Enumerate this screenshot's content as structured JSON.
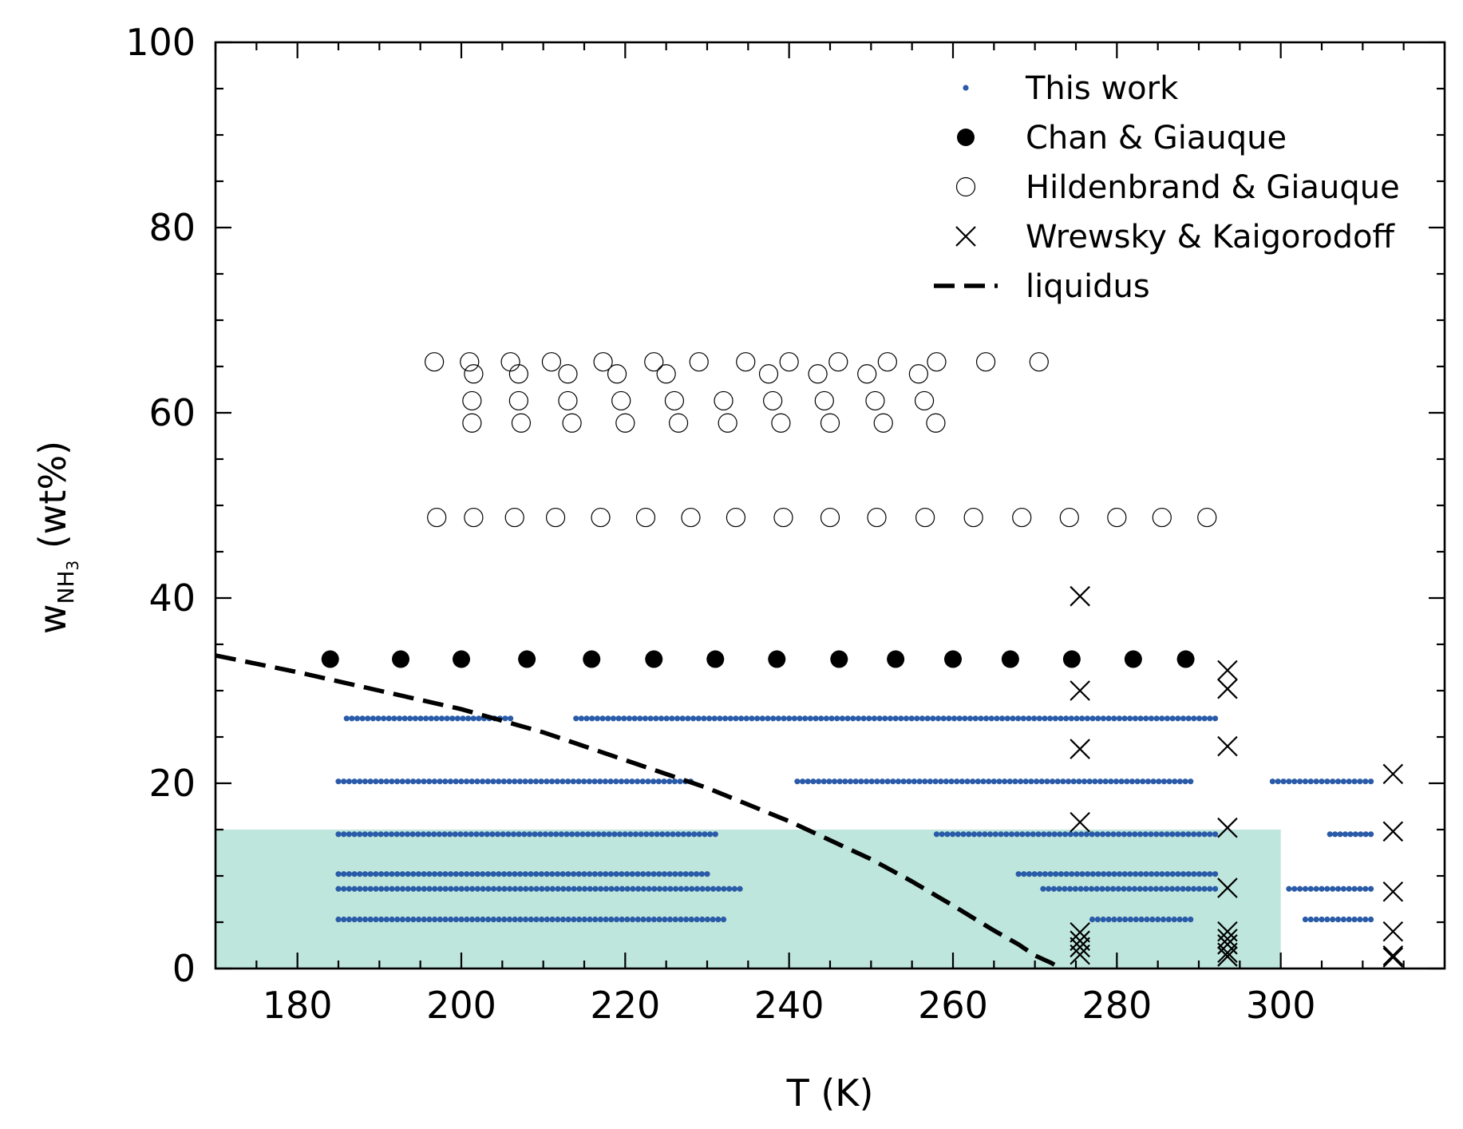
{
  "chart_data": {
    "type": "scatter",
    "xlabel": "T (K)",
    "ylabel": {
      "main": "w",
      "sub": "NH",
      "subsub": "3",
      "unit": " (wt%)"
    },
    "xlim": [
      170,
      320
    ],
    "ylim": [
      0,
      100
    ],
    "xticks": [
      180,
      200,
      220,
      240,
      260,
      280,
      300
    ],
    "yticks": [
      0,
      20,
      40,
      60,
      80,
      100
    ],
    "x_minor_step": 5,
    "y_minor_step": 5,
    "grid": false,
    "legend_position": "top-right",
    "shaded_region": {
      "x": [
        170,
        300
      ],
      "y": [
        0,
        15
      ],
      "color": "#bfe6dc"
    },
    "series": [
      {
        "name": "This work",
        "marker": "small-dot",
        "color": "#2a5ba8",
        "segments": [
          {
            "y": 27.0,
            "x": [
              186,
              206
            ]
          },
          {
            "y": 27.0,
            "x": [
              214,
              292
            ]
          },
          {
            "y": 20.2,
            "x": [
              185,
              228
            ]
          },
          {
            "y": 20.2,
            "x": [
              241,
              289
            ]
          },
          {
            "y": 20.2,
            "x": [
              299,
              311
            ]
          },
          {
            "y": 14.5,
            "x": [
              185,
              231
            ]
          },
          {
            "y": 14.5,
            "x": [
              258,
              292
            ]
          },
          {
            "y": 14.5,
            "x": [
              306,
              311
            ]
          },
          {
            "y": 10.2,
            "x": [
              185,
              230
            ]
          },
          {
            "y": 10.2,
            "x": [
              268,
              292
            ]
          },
          {
            "y": 8.6,
            "x": [
              185,
              234
            ]
          },
          {
            "y": 8.6,
            "x": [
              271,
              292
            ]
          },
          {
            "y": 8.6,
            "x": [
              301,
              311
            ]
          },
          {
            "y": 5.3,
            "x": [
              185,
              232
            ]
          },
          {
            "y": 5.3,
            "x": [
              277,
              289
            ]
          },
          {
            "y": 5.3,
            "x": [
              303,
              311
            ]
          }
        ],
        "spacing": 0.65
      },
      {
        "name": "Chan & Giauque",
        "marker": "filled-circle",
        "color": "#000000",
        "x": [
          184.0,
          192.6,
          200.0,
          208.0,
          215.9,
          223.5,
          231.0,
          238.5,
          246.1,
          253.0,
          260.0,
          267.0,
          274.5,
          282.0,
          288.4
        ],
        "y": [
          33.4,
          33.4,
          33.4,
          33.4,
          33.4,
          33.4,
          33.4,
          33.4,
          33.4,
          33.4,
          33.4,
          33.4,
          33.4,
          33.4,
          33.4
        ]
      },
      {
        "name": "Hildenbrand & Giauque",
        "marker": "open-circle",
        "color": "#000000",
        "x": [
          196.7,
          201.0,
          206.0,
          211.0,
          217.3,
          223.5,
          229.0,
          234.7,
          240.0,
          246.0,
          252.0,
          258.0,
          264.0,
          270.5,
          201.5,
          207.0,
          213.0,
          219.0,
          225.0,
          237.5,
          243.5,
          249.5,
          255.8,
          201.3,
          207.0,
          213.0,
          219.5,
          226.0,
          232.0,
          238.0,
          244.3,
          250.5,
          256.5,
          201.3,
          207.3,
          213.5,
          220.0,
          226.5,
          232.5,
          239.0,
          245.0,
          251.5,
          257.9,
          197.0,
          201.5,
          206.5,
          211.5,
          217.0,
          222.5,
          228.0,
          233.5,
          239.3,
          245.0,
          250.7,
          256.6,
          262.5,
          268.4,
          274.2,
          280.0,
          285.5,
          291.0
        ],
        "y": [
          65.5,
          65.5,
          65.5,
          65.5,
          65.5,
          65.5,
          65.5,
          65.5,
          65.5,
          65.5,
          65.5,
          65.5,
          65.5,
          65.5,
          64.2,
          64.2,
          64.2,
          64.2,
          64.2,
          64.2,
          64.2,
          64.2,
          64.2,
          61.3,
          61.3,
          61.3,
          61.3,
          61.3,
          61.3,
          61.3,
          61.3,
          61.3,
          61.3,
          58.9,
          58.9,
          58.9,
          58.9,
          58.9,
          58.9,
          58.9,
          58.9,
          58.9,
          58.9,
          48.7,
          48.7,
          48.7,
          48.7,
          48.7,
          48.7,
          48.7,
          48.7,
          48.7,
          48.7,
          48.7,
          48.7,
          48.7,
          48.7,
          48.7,
          48.7,
          48.7,
          48.7
        ]
      },
      {
        "name": "Wrewsky & Kaigorodoff",
        "marker": "x",
        "color": "#000000",
        "x": [
          275.5,
          275.5,
          275.5,
          275.5,
          275.5,
          275.5,
          275.5,
          275.5,
          293.5,
          293.5,
          293.5,
          293.5,
          293.5,
          293.5,
          293.5,
          293.5,
          293.5,
          293.5,
          313.7,
          313.7,
          313.7,
          313.7,
          313.7,
          313.7
        ],
        "y": [
          40.2,
          30.0,
          23.7,
          15.8,
          3.9,
          3.0,
          2.3,
          1.5,
          32.2,
          30.2,
          24.0,
          15.2,
          8.7,
          4.0,
          3.2,
          2.6,
          1.7,
          1.3,
          21.0,
          14.8,
          8.3,
          4.0,
          1.4,
          1.2
        ]
      },
      {
        "name": "liquidus",
        "line_style": "dashed",
        "color": "#000000",
        "x": [
          170,
          180,
          190,
          200,
          210,
          220,
          230,
          240,
          250,
          255,
          260,
          265,
          268,
          270,
          272,
          273.2
        ],
        "y": [
          33.8,
          32.0,
          30.0,
          28.0,
          25.5,
          22.5,
          19.5,
          15.9,
          11.8,
          9.4,
          6.8,
          4.1,
          2.6,
          1.4,
          0.6,
          0.0
        ]
      }
    ]
  }
}
